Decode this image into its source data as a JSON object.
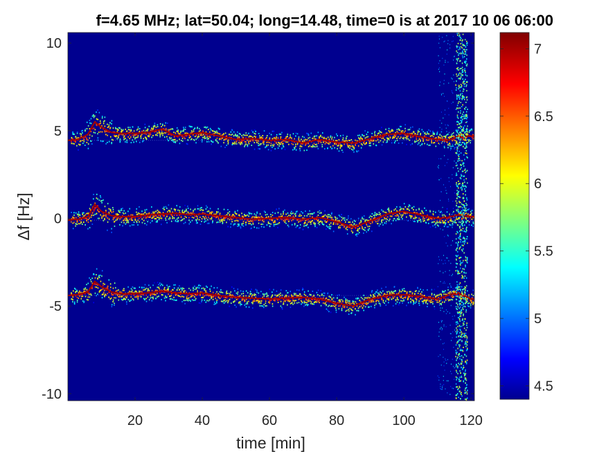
{
  "chart_data": {
    "type": "heatmap",
    "title": "f=4.65 MHz;  lat=50.04; long=14.48, time=0 is at 2017 10 06 06:00",
    "xlabel": "time [min]",
    "ylabel": "Δf [Hz]",
    "xlim": [
      0,
      121
    ],
    "ylim": [
      -10.4,
      10.6
    ],
    "x_ticks": [
      20,
      40,
      60,
      80,
      100,
      120
    ],
    "y_ticks": [
      -10,
      -5,
      0,
      5,
      10
    ],
    "colorbar": {
      "min": 4.4,
      "max": 7.12,
      "ticks": [
        4.5,
        5,
        5.5,
        6,
        6.5,
        7
      ],
      "colormap": "jet"
    },
    "traces": [
      {
        "time": [
          0,
          3,
          6,
          8,
          10,
          13,
          16,
          20,
          24,
          28,
          32,
          36,
          40,
          45,
          50,
          55,
          60,
          65,
          70,
          75,
          80,
          85,
          90,
          95,
          100,
          105,
          110,
          113,
          116,
          120
        ],
        "freq": [
          4.45,
          4.5,
          4.8,
          5.5,
          5.2,
          4.9,
          4.85,
          4.85,
          4.9,
          5.1,
          4.7,
          4.8,
          4.9,
          4.7,
          4.5,
          4.55,
          4.45,
          4.5,
          4.3,
          4.5,
          4.35,
          4.3,
          4.55,
          4.8,
          4.85,
          4.65,
          4.5,
          4.45,
          4.65,
          4.7
        ]
      },
      {
        "time": [
          0,
          3,
          6,
          8,
          10,
          13,
          16,
          20,
          24,
          28,
          32,
          36,
          40,
          45,
          50,
          55,
          60,
          65,
          70,
          75,
          80,
          85,
          90,
          95,
          100,
          105,
          110,
          113,
          116,
          120
        ],
        "freq": [
          -0.1,
          -0.05,
          0.1,
          0.8,
          0.4,
          0.15,
          0.1,
          0.1,
          0.2,
          0.25,
          0.3,
          0.2,
          0.25,
          0.15,
          0.05,
          -0.05,
          0.0,
          0.05,
          -0.05,
          0.05,
          -0.2,
          -0.5,
          -0.15,
          0.25,
          0.4,
          0.2,
          0.0,
          0.05,
          0.2,
          0.1
        ]
      },
      {
        "time": [
          0,
          3,
          6,
          8,
          10,
          13,
          16,
          20,
          24,
          28,
          32,
          36,
          40,
          45,
          50,
          55,
          60,
          65,
          70,
          75,
          80,
          85,
          90,
          95,
          100,
          105,
          110,
          113,
          116,
          120
        ],
        "freq": [
          -4.4,
          -4.35,
          -4.2,
          -3.6,
          -3.9,
          -4.2,
          -4.3,
          -4.3,
          -4.25,
          -4.15,
          -4.25,
          -4.3,
          -4.25,
          -4.4,
          -4.5,
          -4.55,
          -4.6,
          -4.55,
          -4.5,
          -4.6,
          -4.85,
          -5.0,
          -4.6,
          -4.4,
          -4.35,
          -4.45,
          -4.6,
          -4.4,
          -4.25,
          -4.6
        ]
      }
    ]
  }
}
